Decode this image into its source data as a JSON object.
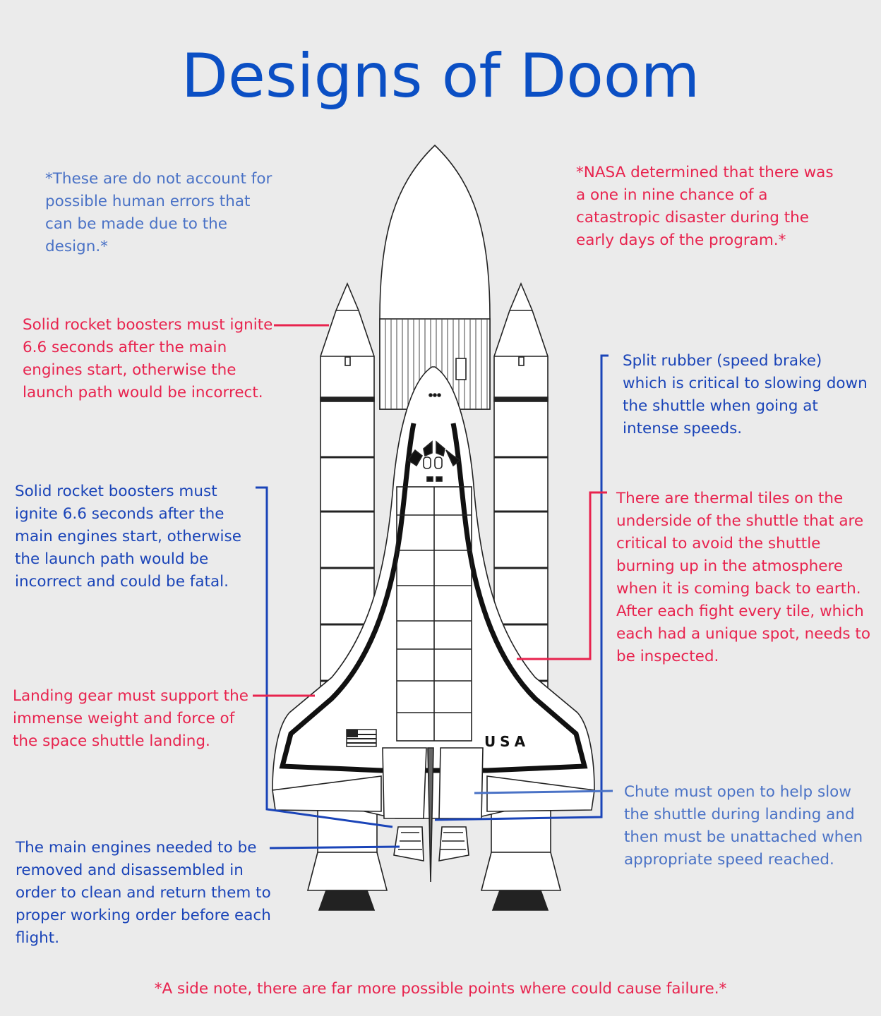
{
  "title": "Designs of Doom",
  "colors": {
    "title": "#0b4fc4",
    "red": "#e8234e",
    "blue": "#1a44b8",
    "light_blue": "#4a72c6",
    "background": "#ebebeb"
  },
  "notes": {
    "human_errors": "*These are do not account for possible human errors that can be made due to the design.*",
    "nasa_chance": "*NASA determined that there was a one in nine chance of a catastropic disaster during the early days of the program.*",
    "srb_ignite_red": "Solid rocket boosters must ignite 6.6 seconds after the main engines start, otherwise the launch path would be incorrect.",
    "speed_brake": "Split rubber (speed brake) which is critical to slowing down the shuttle when going at intense speeds.",
    "srb_ignite_blue": "Solid rocket boosters must ignite 6.6 seconds after the main engines start, otherwise the launch path would be incorrect and could be fatal.",
    "thermal_tiles": "There are thermal tiles on the underside of the shuttle that are critical to avoid the shuttle burning up in the atmosphere when it is coming back to earth. After each fight every tile, which each had a unique spot, needs to be inspected.",
    "landing_gear": "Landing gear must support the immense weight and force of the space shuttle landing.",
    "chute": "Chute must open to help slow the shuttle during landing and then must be unattached when appropriate speed reached.",
    "main_engines": "The main engines needed to be removed and disassembled in order to clean and return them to proper working order before each flight.",
    "side_note": "*A side note, there are far more possible points where could cause failure.*"
  },
  "diagram": {
    "orbiter_marking": "USA",
    "icons": [
      "space-shuttle-icon",
      "usa-flag-icon"
    ]
  }
}
